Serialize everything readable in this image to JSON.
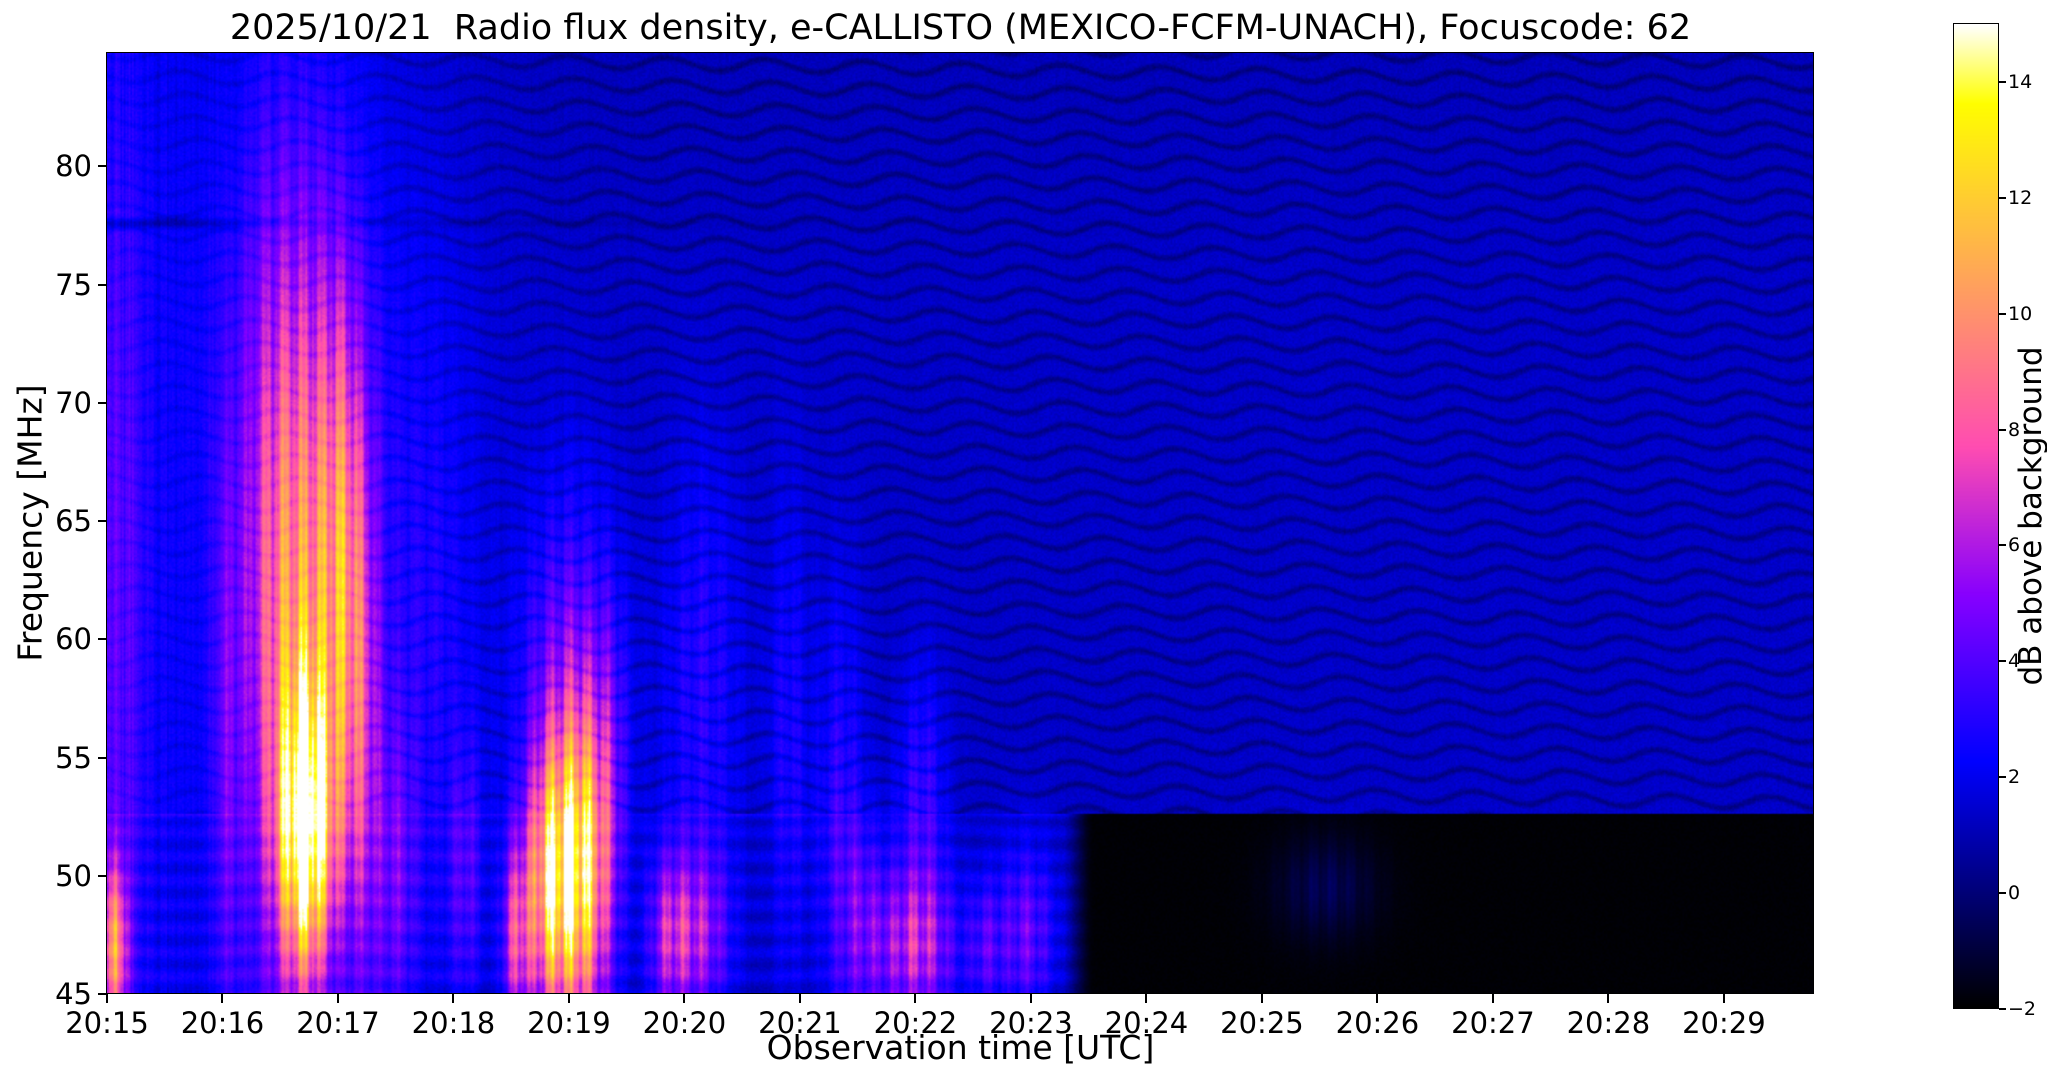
{
  "chart_data": {
    "type": "heatmap",
    "title": "2025/10/21  Radio flux density, e-CALLISTO (MEXICO-FCFM-UNACH), Focuscode: 62",
    "xlabel": "Observation time [UTC]",
    "ylabel": "Frequency [MHz]",
    "x_axis": {
      "label": "Observation time [UTC]",
      "tick_labels": [
        "20:15",
        "20:16",
        "20:17",
        "20:18",
        "20:19",
        "20:20",
        "20:21",
        "20:22",
        "20:23",
        "20:24",
        "20:25",
        "20:26",
        "20:27",
        "20:28",
        "20:29"
      ],
      "start": "20:15",
      "duration_min": 14.78
    },
    "y_axis": {
      "label": "Frequency [MHz]",
      "tick_values": [
        45,
        50,
        55,
        60,
        65,
        70,
        75,
        80
      ],
      "range": [
        45,
        84.8
      ]
    },
    "colorbar": {
      "label": "dB above background",
      "tick_values": [
        -2,
        0,
        2,
        4,
        6,
        8,
        10,
        12,
        14
      ],
      "tick_labels": [
        "−2",
        "0",
        "2",
        "4",
        "6",
        "8",
        "10",
        "12",
        "14"
      ],
      "range": [
        -2,
        15
      ],
      "colormap": "gnuplot2"
    },
    "legend": "none",
    "grid": false,
    "spectrogram": {
      "background_db": 1.35,
      "bursts_format": [
        "t_min_after_2015",
        "freq_mhz",
        "sigma_t_min",
        "sigma_f_mhz",
        "amp_db"
      ],
      "bursts": [
        [
          0.08,
          47.0,
          0.07,
          2.5,
          7.0
        ],
        [
          0.12,
          62.0,
          0.15,
          14.0,
          1.8
        ],
        [
          1.05,
          55.0,
          0.1,
          10.0,
          2.2
        ],
        [
          1.45,
          60.0,
          0.18,
          12.0,
          2.8
        ],
        [
          1.6,
          70.0,
          0.5,
          10.0,
          1.5
        ],
        [
          1.72,
          52.0,
          0.15,
          4.2,
          12.5
        ],
        [
          1.74,
          58.0,
          0.26,
          8.0,
          4.0
        ],
        [
          1.8,
          67.0,
          0.3,
          9.0,
          2.8
        ],
        [
          2.05,
          62.0,
          0.13,
          8.0,
          4.2
        ],
        [
          2.22,
          55.0,
          0.11,
          8.0,
          3.0
        ],
        [
          2.5,
          50.0,
          0.13,
          5.0,
          2.4
        ],
        [
          2.8,
          60.0,
          0.3,
          10.0,
          1.2
        ],
        [
          3.1,
          50.0,
          0.1,
          4.0,
          2.2
        ],
        [
          3.55,
          47.5,
          0.09,
          3.0,
          5.5
        ],
        [
          3.85,
          49.5,
          0.14,
          4.0,
          10.5
        ],
        [
          4.12,
          50.0,
          0.13,
          4.5,
          9.5
        ],
        [
          4.0,
          57.0,
          0.28,
          6.0,
          3.8
        ],
        [
          4.35,
          52.0,
          0.1,
          6.0,
          2.8
        ],
        [
          4.85,
          47.5,
          0.12,
          2.5,
          3.2
        ],
        [
          5.1,
          47.5,
          0.2,
          2.5,
          4.2
        ],
        [
          5.15,
          58.0,
          0.25,
          7.0,
          1.8
        ],
        [
          5.9,
          55.0,
          0.12,
          8.0,
          1.6
        ],
        [
          6.35,
          52.0,
          0.15,
          7.0,
          2.0
        ],
        [
          6.55,
          48.0,
          0.15,
          3.0,
          2.2
        ],
        [
          7.0,
          47.0,
          0.25,
          2.3,
          4.8
        ],
        [
          7.05,
          53.0,
          0.15,
          4.0,
          2.2
        ],
        [
          7.6,
          47.0,
          0.1,
          2.0,
          2.2
        ],
        [
          7.95,
          47.5,
          0.18,
          2.6,
          3.2
        ],
        [
          10.55,
          49.5,
          0.3,
          1.5,
          1.3
        ]
      ],
      "quiet_region": {
        "below_mhz": 52.6,
        "start_min": 8.4,
        "level_db": -1.9
      },
      "interference": {
        "stripe_period_mhz": 0.95,
        "dark_line_mhz": 77.6,
        "bright_line_mhz": 52.75
      }
    }
  }
}
